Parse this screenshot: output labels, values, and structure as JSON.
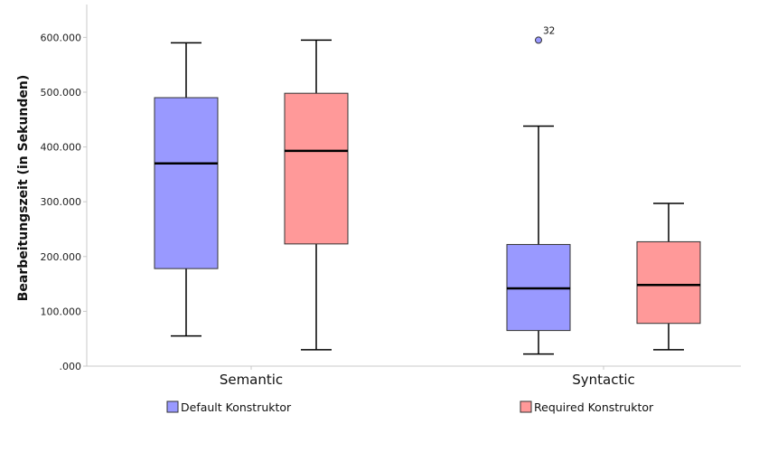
{
  "chart_data": {
    "type": "boxplot",
    "ylabel": "Bearbeitungszeit (in Sekunden)",
    "xlabel": "",
    "ylim": [
      0,
      660
    ],
    "yticks": [
      {
        "value": 0,
        "label": ".000"
      },
      {
        "value": 100,
        "label": "100.000"
      },
      {
        "value": 200,
        "label": "200.000"
      },
      {
        "value": 300,
        "label": "300.000"
      },
      {
        "value": 400,
        "label": "400.000"
      },
      {
        "value": 500,
        "label": "500.000"
      },
      {
        "value": 600,
        "label": "600.000"
      }
    ],
    "categories": [
      "Semantic",
      "Syntactic"
    ],
    "series": [
      {
        "name": "Default Konstruktor",
        "color": "#9999ff",
        "boxes": [
          {
            "whisker_low": 55,
            "q1": 178,
            "median": 370,
            "q3": 490,
            "whisker_high": 590,
            "outliers": []
          },
          {
            "whisker_low": 22,
            "q1": 65,
            "median": 142,
            "q3": 222,
            "whisker_high": 438,
            "outliers": [
              {
                "value": 595,
                "label": "32"
              }
            ]
          }
        ]
      },
      {
        "name": "Required Konstruktor",
        "color": "#ff9999",
        "boxes": [
          {
            "whisker_low": 30,
            "q1": 223,
            "median": 393,
            "q3": 498,
            "whisker_high": 595,
            "outliers": []
          },
          {
            "whisker_low": 30,
            "q1": 78,
            "median": 148,
            "q3": 227,
            "whisker_high": 297,
            "outliers": []
          }
        ]
      }
    ],
    "legend_position": "bottom"
  }
}
